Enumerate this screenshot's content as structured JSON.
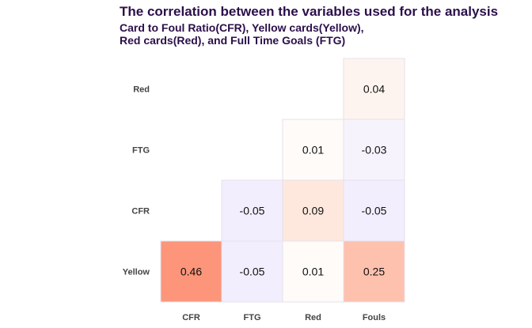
{
  "chart_data": {
    "type": "heatmap",
    "title": "The correlation between the variables used for the analysis",
    "subtitle_lines": [
      "Card to Foul Ratio(CFR), Yellow cards(Yellow),",
      "Red cards(Red), and Full Time Goals (FTG)"
    ],
    "x_categories": [
      "CFR",
      "FTG",
      "Red",
      "Fouls"
    ],
    "y_categories": [
      "Yellow",
      "CFR",
      "FTG",
      "Red"
    ],
    "cells": [
      {
        "x": "CFR",
        "y": "Yellow",
        "value": 0.46,
        "color": "#fc9579"
      },
      {
        "x": "FTG",
        "y": "Yellow",
        "value": -0.05,
        "color": "#f3eefd"
      },
      {
        "x": "Red",
        "y": "Yellow",
        "value": 0.01,
        "color": "#fefbf9"
      },
      {
        "x": "Fouls",
        "y": "Yellow",
        "value": 0.25,
        "color": "#fdc1ae"
      },
      {
        "x": "FTG",
        "y": "CFR",
        "value": -0.05,
        "color": "#f3eefd"
      },
      {
        "x": "Red",
        "y": "CFR",
        "value": 0.09,
        "color": "#fee8de"
      },
      {
        "x": "Fouls",
        "y": "CFR",
        "value": -0.05,
        "color": "#f3eefd"
      },
      {
        "x": "Red",
        "y": "FTG",
        "value": 0.01,
        "color": "#fefbf9"
      },
      {
        "x": "Fouls",
        "y": "FTG",
        "value": -0.03,
        "color": "#f7f3fd"
      },
      {
        "x": "Fouls",
        "y": "Red",
        "value": 0.04,
        "color": "#fef4ef"
      }
    ],
    "value_range": [
      -1,
      1
    ],
    "legend": "none",
    "grid": false
  }
}
